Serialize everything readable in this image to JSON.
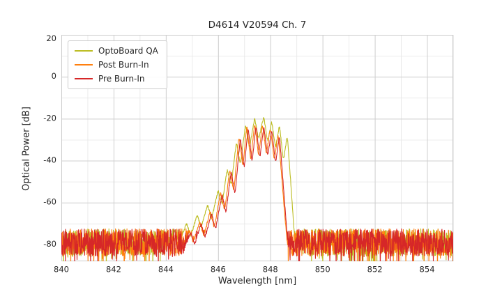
{
  "chart_data": {
    "type": "line",
    "title": "D4614 V20594 Ch. 7",
    "xlabel": "Wavelength [nm]",
    "ylabel": "Optical Power [dB]",
    "xlim": [
      840,
      855
    ],
    "ylim": [
      -88,
      20
    ],
    "x_ticks": [
      840,
      842,
      844,
      846,
      848,
      850,
      852,
      854
    ],
    "y_ticks": [
      20,
      0,
      -20,
      -40,
      -60,
      -80
    ],
    "x_minor_step": 1,
    "y_minor_step": 10,
    "grid": true,
    "legend_position": "upper-left",
    "noise_floor": {
      "mean_db": -79,
      "spread_db": 13,
      "min_db": -88,
      "max_db": -71
    },
    "series": [
      {
        "name": "OptoBoard QA",
        "color": "#bcbd22",
        "peak_db": -19,
        "envelope": [
          [
            843.95,
            -86
          ],
          [
            844.35,
            -73
          ],
          [
            844.5,
            -79
          ],
          [
            844.8,
            -70
          ],
          [
            844.95,
            -76
          ],
          [
            845.2,
            -66
          ],
          [
            845.35,
            -72
          ],
          [
            845.6,
            -61
          ],
          [
            845.75,
            -68
          ],
          [
            846.0,
            -54
          ],
          [
            846.15,
            -61
          ],
          [
            846.35,
            -44
          ],
          [
            846.5,
            -52
          ],
          [
            846.7,
            -31
          ],
          [
            846.85,
            -42
          ],
          [
            847.05,
            -23
          ],
          [
            847.2,
            -34
          ],
          [
            847.4,
            -19.5
          ],
          [
            847.55,
            -30
          ],
          [
            847.75,
            -19
          ],
          [
            847.9,
            -31
          ],
          [
            848.05,
            -21
          ],
          [
            848.2,
            -34
          ],
          [
            848.35,
            -23
          ],
          [
            848.5,
            -40
          ],
          [
            848.65,
            -28
          ],
          [
            848.78,
            -50
          ],
          [
            848.9,
            -72
          ],
          [
            849.0,
            -86
          ]
        ]
      },
      {
        "name": "Post Burn-In",
        "color": "#ff7f0e",
        "peak_db": -22,
        "envelope": [
          [
            844.55,
            -86
          ],
          [
            844.9,
            -73
          ],
          [
            845.05,
            -79
          ],
          [
            845.3,
            -69
          ],
          [
            845.45,
            -76
          ],
          [
            845.7,
            -64
          ],
          [
            845.85,
            -72
          ],
          [
            846.1,
            -55
          ],
          [
            846.25,
            -64
          ],
          [
            846.45,
            -44
          ],
          [
            846.6,
            -55
          ],
          [
            846.8,
            -28
          ],
          [
            846.95,
            -43
          ],
          [
            847.1,
            -23
          ],
          [
            847.25,
            -40
          ],
          [
            847.4,
            -22
          ],
          [
            847.55,
            -38
          ],
          [
            847.7,
            -22.5
          ],
          [
            847.85,
            -37
          ],
          [
            848.0,
            -24
          ],
          [
            848.15,
            -40
          ],
          [
            848.3,
            -27
          ],
          [
            848.45,
            -50
          ],
          [
            848.58,
            -70
          ],
          [
            848.7,
            -86
          ]
        ]
      },
      {
        "name": "Pre Burn-In",
        "color": "#d62728",
        "peak_db": -23,
        "envelope": [
          [
            844.6,
            -86
          ],
          [
            844.95,
            -74
          ],
          [
            845.1,
            -80
          ],
          [
            845.35,
            -70
          ],
          [
            845.5,
            -77
          ],
          [
            845.75,
            -65
          ],
          [
            845.9,
            -73
          ],
          [
            846.15,
            -56
          ],
          [
            846.3,
            -65
          ],
          [
            846.5,
            -45
          ],
          [
            846.65,
            -56
          ],
          [
            846.85,
            -29
          ],
          [
            847.0,
            -44
          ],
          [
            847.15,
            -24
          ],
          [
            847.3,
            -41
          ],
          [
            847.45,
            -23
          ],
          [
            847.6,
            -39
          ],
          [
            847.75,
            -23.5
          ],
          [
            847.9,
            -38
          ],
          [
            848.05,
            -25
          ],
          [
            848.2,
            -41
          ],
          [
            848.35,
            -28
          ],
          [
            848.5,
            -52
          ],
          [
            848.62,
            -72
          ],
          [
            848.72,
            -86
          ]
        ]
      }
    ]
  }
}
